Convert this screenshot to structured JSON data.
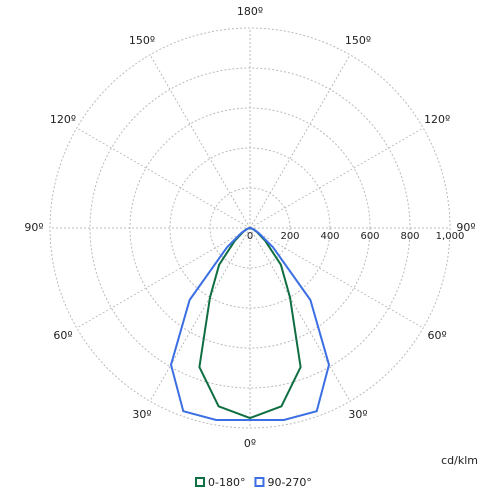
{
  "chart_data": {
    "type": "polar",
    "unit_label": "cd/klm",
    "rlim": [
      0,
      1000
    ],
    "rticks": [
      0,
      200,
      400,
      600,
      800,
      {
        "value": 1000,
        "label": "1,000"
      }
    ],
    "angle_ticks": [
      {
        "value": 0,
        "label": "0º"
      },
      {
        "value": 30,
        "label": "30º"
      },
      {
        "value": 60,
        "label": "60º"
      },
      {
        "value": 90,
        "label": "90º"
      },
      {
        "value": 120,
        "label": "120º"
      },
      {
        "value": 150,
        "label": "150º"
      },
      {
        "value": 180,
        "label": "180º"
      },
      {
        "value": -150,
        "label": "150º"
      },
      {
        "value": -120,
        "label": "120º"
      },
      {
        "value": -90,
        "label": "90º"
      },
      {
        "value": -60,
        "label": "60º"
      },
      {
        "value": -30,
        "label": "30º"
      }
    ],
    "grid": true,
    "angles": [
      -90,
      -80,
      -70,
      -60,
      -50,
      -40,
      -30,
      -20,
      -10,
      0,
      10,
      20,
      30,
      40,
      50,
      60,
      70,
      80,
      90
    ],
    "series": [
      {
        "name": "0-180°",
        "color": "#0f6e42",
        "values": [
          0,
          5,
          15,
          40,
          100,
          240,
          400,
          740,
          905,
          950,
          905,
          740,
          400,
          240,
          100,
          40,
          15,
          5,
          0
        ]
      },
      {
        "name": "90-270°",
        "color": "#3b6fe3",
        "values": [
          0,
          5,
          20,
          50,
          150,
          470,
          790,
          975,
          975,
          960,
          975,
          975,
          790,
          470,
          150,
          50,
          20,
          5,
          0
        ]
      }
    ]
  }
}
